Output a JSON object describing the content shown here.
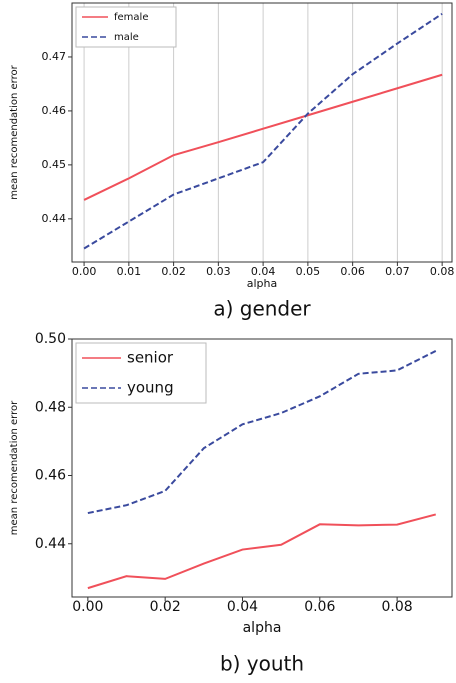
{
  "chart_data": [
    {
      "type": "line",
      "caption": "a) gender",
      "xlabel": "alpha",
      "ylabel": "mean recomendation error",
      "x": [
        0,
        0.01,
        0.02,
        0.03,
        0.04,
        0.05,
        0.06,
        0.07,
        0.08
      ],
      "series": [
        {
          "name": "female",
          "color": "#f0505a",
          "dash": false,
          "values": [
            0.4435,
            0.4475,
            0.4518,
            0.4542,
            0.4567,
            0.4592,
            0.4617,
            0.4642,
            0.4667
          ]
        },
        {
          "name": "male",
          "color": "#3a4a9e",
          "dash": true,
          "values": [
            0.4345,
            0.4395,
            0.4445,
            0.4475,
            0.4505,
            0.4595,
            0.4668,
            0.4725,
            0.478
          ]
        }
      ],
      "xlim": [
        -0.0027,
        0.0822
      ],
      "ylim": [
        0.432,
        0.48
      ],
      "xticks": [
        {
          "value": 0,
          "label": "0.00"
        },
        0.01,
        0.02,
        0.03,
        0.04,
        0.05,
        0.06,
        0.07,
        0.08
      ],
      "yticks": [
        0.44,
        0.45,
        0.46,
        0.47
      ],
      "grid": "x",
      "legend": "upper-left"
    },
    {
      "type": "line",
      "caption": "b) youth",
      "xlabel": "alpha",
      "ylabel": "mean recomendation error",
      "x": [
        0,
        0.01,
        0.02,
        0.03,
        0.04,
        0.05,
        0.06,
        0.07,
        0.08,
        0.09
      ],
      "series": [
        {
          "name": "senior",
          "color": "#f0505a",
          "dash": false,
          "values": [
            0.427,
            0.4305,
            0.4297,
            0.4342,
            0.4383,
            0.4397,
            0.4457,
            0.4454,
            0.4456,
            0.4486
          ]
        },
        {
          "name": "young",
          "color": "#3a4a9e",
          "dash": true,
          "values": [
            0.449,
            0.4513,
            0.4555,
            0.468,
            0.475,
            0.4783,
            0.4832,
            0.4898,
            0.4908,
            0.4965
          ]
        }
      ],
      "xlim": [
        -0.0041,
        0.0942
      ],
      "ylim": [
        0.4244,
        0.5
      ],
      "xticks": [
        {
          "value": 0,
          "label": "0.00"
        },
        0.02,
        0.04,
        0.06,
        0.08
      ],
      "yticks": [
        0.44,
        0.46,
        0.48,
        {
          "value": 0.5,
          "label": "0.50"
        }
      ],
      "grid": false,
      "legend": "upper-left"
    }
  ]
}
